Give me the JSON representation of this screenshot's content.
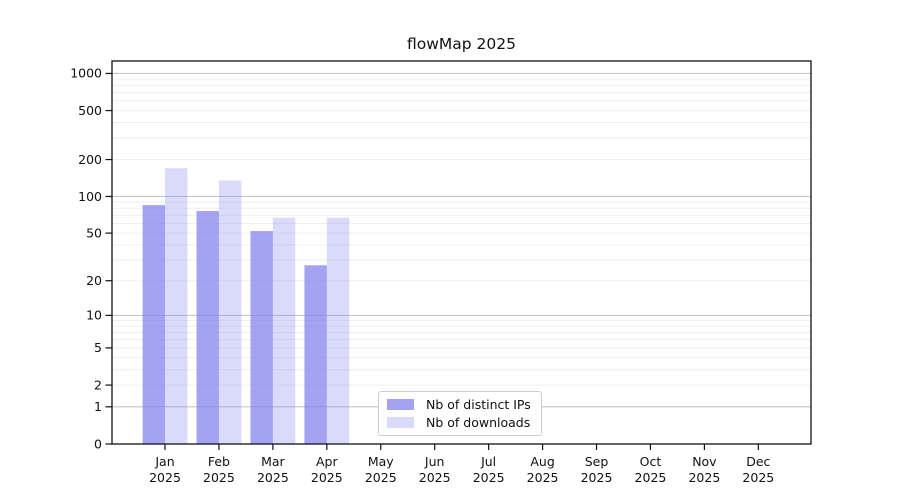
{
  "chart_data": {
    "type": "bar",
    "title": "flowMap 2025",
    "x": {
      "categories": [
        "Jan",
        "Feb",
        "Mar",
        "Apr",
        "May",
        "Jun",
        "Jul",
        "Aug",
        "Sep",
        "Oct",
        "Nov",
        "Dec"
      ],
      "year": "2025"
    },
    "y_axis": {
      "scale": "log1p",
      "ylabel": "",
      "tick_labels": [
        "1000",
        "500",
        "200",
        "100",
        "50",
        "20",
        "10",
        "5",
        "2",
        "1",
        "0"
      ],
      "tick_values": [
        1000,
        500,
        200,
        100,
        50,
        20,
        10,
        5,
        2,
        1,
        0
      ],
      "major_gridlines": [
        1,
        10,
        100,
        1000
      ],
      "minor_gridlines": [
        2,
        3,
        4,
        5,
        6,
        7,
        8,
        9,
        20,
        30,
        40,
        50,
        60,
        70,
        80,
        90,
        200,
        300,
        400,
        500,
        600,
        700,
        800,
        900
      ],
      "bottom_value": 0,
      "top_value": 1216
    },
    "series": [
      {
        "name": "Nb of distinct IPs",
        "color": "#8686ee",
        "opacity": 0.76,
        "values": [
          85,
          76,
          52,
          27,
          0,
          0,
          0,
          0,
          0,
          0,
          0,
          0
        ]
      },
      {
        "name": "Nb of downloads",
        "color": "#8686ee",
        "opacity": 0.31,
        "values": [
          170,
          135,
          67,
          67,
          0,
          0,
          0,
          0,
          0,
          0,
          0,
          0
        ]
      }
    ],
    "legend": {
      "position": "lower-center",
      "entries": [
        "Nb of distinct IPs",
        "Nb of downloads"
      ],
      "border_color": "#cccccc",
      "background": "#ffffff"
    },
    "grid": {
      "on": true,
      "major_color": "#c6c6c6",
      "minor_color": "#efefef"
    },
    "axis_color": "#111111",
    "text_color": "#111111",
    "background": "#ffffff"
  }
}
